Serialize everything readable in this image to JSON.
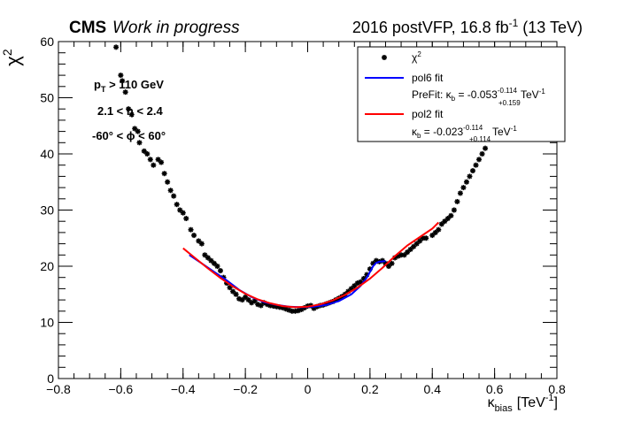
{
  "header": {
    "experiment": "CMS",
    "status": "Work in progress",
    "lumi_main": "2016 postVFP, 16.8 fb",
    "lumi_sup": "-1",
    "lumi_tail": " (13 TeV)"
  },
  "annotations": {
    "pt_p": "p",
    "pt_sub": "T",
    "pt_rest": " > 110 GeV",
    "eta_cut": "2.1 < η < 2.4",
    "phi_cut": "-60° < ϕ < 60°"
  },
  "legend": {
    "chi2_base": "χ",
    "chi2_sup": "2",
    "pol6_label": "pol6 fit",
    "prefit_prefix": "PreFit: κ",
    "prefit_sub": "b",
    "prefit_value": " = -0.053",
    "prefit_err_up": "-0.114",
    "prefit_err_down": "+0.159",
    "prefit_unit": " TeV",
    "prefit_unit_sup": "-1",
    "pol2_label": "pol2 fit",
    "pol2_prefix": "κ",
    "pol2_sub": "b",
    "pol2_value": " = -0.023",
    "pol2_err_up": "-0.114",
    "pol2_err_down": "+0.114",
    "pol2_unit": " TeV",
    "pol2_unit_sup": "-1"
  },
  "colors": {
    "points": "#000000",
    "pol6": "#0000ff",
    "pol2": "#ff0000"
  },
  "chart_data": {
    "type": "scatter",
    "xlim": [
      -0.8,
      0.8
    ],
    "ylim": [
      0,
      60
    ],
    "xlabel_main": "κ",
    "xlabel_sub": "bias",
    "xlabel_unit": "[TeV",
    "xlabel_unit_sup": "-1",
    "xlabel_unit_close": "]",
    "ylabel_base": "χ",
    "ylabel_sup": "2",
    "xticks": [
      "-0.8",
      "-0.6",
      "-0.4",
      "-0.2",
      "0",
      "0.2",
      "0.4",
      "0.6",
      "0.8"
    ],
    "yticks": [
      "0",
      "10",
      "20",
      "30",
      "40",
      "50",
      "60"
    ],
    "points": [
      [
        -0.615,
        59.0
      ],
      [
        -0.6,
        54.0
      ],
      [
        -0.595,
        53.0
      ],
      [
        -0.585,
        51.0
      ],
      [
        -0.575,
        48.0
      ],
      [
        -0.565,
        47.0
      ],
      [
        -0.555,
        44.5
      ],
      [
        -0.545,
        44.0
      ],
      [
        -0.54,
        42.0
      ],
      [
        -0.525,
        40.5
      ],
      [
        -0.515,
        40.0
      ],
      [
        -0.505,
        39.0
      ],
      [
        -0.495,
        38.0
      ],
      [
        -0.48,
        39.0
      ],
      [
        -0.47,
        38.5
      ],
      [
        -0.46,
        36.5
      ],
      [
        -0.45,
        35.0
      ],
      [
        -0.44,
        33.5
      ],
      [
        -0.43,
        32.5
      ],
      [
        -0.42,
        31.0
      ],
      [
        -0.41,
        30.0
      ],
      [
        -0.4,
        29.5
      ],
      [
        -0.39,
        28.5
      ],
      [
        -0.375,
        26.5
      ],
      [
        -0.365,
        25.5
      ],
      [
        -0.35,
        24.5
      ],
      [
        -0.34,
        24.0
      ],
      [
        -0.33,
        22.0
      ],
      [
        -0.32,
        21.5
      ],
      [
        -0.31,
        21.0
      ],
      [
        -0.3,
        20.5
      ],
      [
        -0.29,
        20.0
      ],
      [
        -0.28,
        19.2
      ],
      [
        -0.27,
        18.0
      ],
      [
        -0.26,
        17.0
      ],
      [
        -0.25,
        16.2
      ],
      [
        -0.24,
        15.5
      ],
      [
        -0.23,
        15.0
      ],
      [
        -0.22,
        14.2
      ],
      [
        -0.21,
        14.0
      ],
      [
        -0.2,
        14.5
      ],
      [
        -0.19,
        14.0
      ],
      [
        -0.18,
        13.5
      ],
      [
        -0.17,
        13.8
      ],
      [
        -0.16,
        13.2
      ],
      [
        -0.15,
        13.0
      ],
      [
        -0.14,
        13.5
      ],
      [
        -0.13,
        13.2
      ],
      [
        -0.12,
        13.0
      ],
      [
        -0.11,
        12.9
      ],
      [
        -0.1,
        12.8
      ],
      [
        -0.09,
        12.7
      ],
      [
        -0.08,
        12.6
      ],
      [
        -0.07,
        12.4
      ],
      [
        -0.06,
        12.2
      ],
      [
        -0.05,
        12.0
      ],
      [
        -0.04,
        12.0
      ],
      [
        -0.03,
        12.1
      ],
      [
        -0.02,
        12.3
      ],
      [
        -0.01,
        12.6
      ],
      [
        0.0,
        12.9
      ],
      [
        0.01,
        13.0
      ],
      [
        0.02,
        12.5
      ],
      [
        0.03,
        12.8
      ],
      [
        0.04,
        13.0
      ],
      [
        0.05,
        13.1
      ],
      [
        0.06,
        13.3
      ],
      [
        0.07,
        13.5
      ],
      [
        0.08,
        13.7
      ],
      [
        0.09,
        14.0
      ],
      [
        0.1,
        14.3
      ],
      [
        0.11,
        14.6
      ],
      [
        0.12,
        15.0
      ],
      [
        0.13,
        15.5
      ],
      [
        0.14,
        16.0
      ],
      [
        0.15,
        16.5
      ],
      [
        0.16,
        17.0
      ],
      [
        0.17,
        17.2
      ],
      [
        0.18,
        17.8
      ],
      [
        0.19,
        18.5
      ],
      [
        0.2,
        19.5
      ],
      [
        0.21,
        20.5
      ],
      [
        0.22,
        21.0
      ],
      [
        0.23,
        20.8
      ],
      [
        0.24,
        21.0
      ],
      [
        0.25,
        20.5
      ],
      [
        0.26,
        20.0
      ],
      [
        0.27,
        20.5
      ],
      [
        0.28,
        21.5
      ],
      [
        0.29,
        21.8
      ],
      [
        0.3,
        22.0
      ],
      [
        0.31,
        22.0
      ],
      [
        0.32,
        22.5
      ],
      [
        0.33,
        23.0
      ],
      [
        0.34,
        23.5
      ],
      [
        0.35,
        24.0
      ],
      [
        0.36,
        24.5
      ],
      [
        0.37,
        25.0
      ],
      [
        0.38,
        25.0
      ],
      [
        0.4,
        25.5
      ],
      [
        0.41,
        26.0
      ],
      [
        0.42,
        26.5
      ],
      [
        0.43,
        27.5
      ],
      [
        0.44,
        28.0
      ],
      [
        0.45,
        28.5
      ],
      [
        0.46,
        29.0
      ],
      [
        0.47,
        30.0
      ],
      [
        0.48,
        31.5
      ],
      [
        0.49,
        33.0
      ],
      [
        0.5,
        34.0
      ],
      [
        0.51,
        35.0
      ],
      [
        0.52,
        36.0
      ],
      [
        0.53,
        37.0
      ],
      [
        0.54,
        38.0
      ],
      [
        0.55,
        39.0
      ],
      [
        0.56,
        40.0
      ],
      [
        0.57,
        41.0
      ]
    ],
    "pol6_curve": [
      [
        -0.38,
        22.0
      ],
      [
        -0.34,
        20.5
      ],
      [
        -0.3,
        19.0
      ],
      [
        -0.26,
        17.5
      ],
      [
        -0.22,
        15.8
      ],
      [
        -0.18,
        14.5
      ],
      [
        -0.14,
        13.6
      ],
      [
        -0.1,
        13.1
      ],
      [
        -0.06,
        12.8
      ],
      [
        -0.02,
        12.7
      ],
      [
        0.02,
        12.8
      ],
      [
        0.06,
        13.1
      ],
      [
        0.1,
        13.8
      ],
      [
        0.14,
        15.0
      ],
      [
        0.17,
        16.5
      ],
      [
        0.19,
        18.0
      ],
      [
        0.2,
        19.0
      ],
      [
        0.21,
        20.0
      ],
      [
        0.22,
        20.6
      ],
      [
        0.23,
        20.8
      ],
      [
        0.25,
        20.9
      ]
    ],
    "pol2_curve": [
      [
        -0.4,
        23.2
      ],
      [
        -0.36,
        21.4
      ],
      [
        -0.32,
        19.6
      ],
      [
        -0.28,
        17.9
      ],
      [
        -0.24,
        16.4
      ],
      [
        -0.2,
        15.1
      ],
      [
        -0.16,
        14.1
      ],
      [
        -0.12,
        13.4
      ],
      [
        -0.08,
        12.9
      ],
      [
        -0.04,
        12.7
      ],
      [
        0.0,
        12.8
      ],
      [
        0.04,
        13.2
      ],
      [
        0.08,
        13.9
      ],
      [
        0.12,
        14.9
      ],
      [
        0.16,
        16.2
      ],
      [
        0.2,
        17.8
      ],
      [
        0.24,
        19.7
      ],
      [
        0.28,
        21.8
      ],
      [
        0.32,
        23.7
      ],
      [
        0.36,
        25.2
      ],
      [
        0.4,
        26.7
      ],
      [
        0.42,
        27.8
      ]
    ]
  }
}
